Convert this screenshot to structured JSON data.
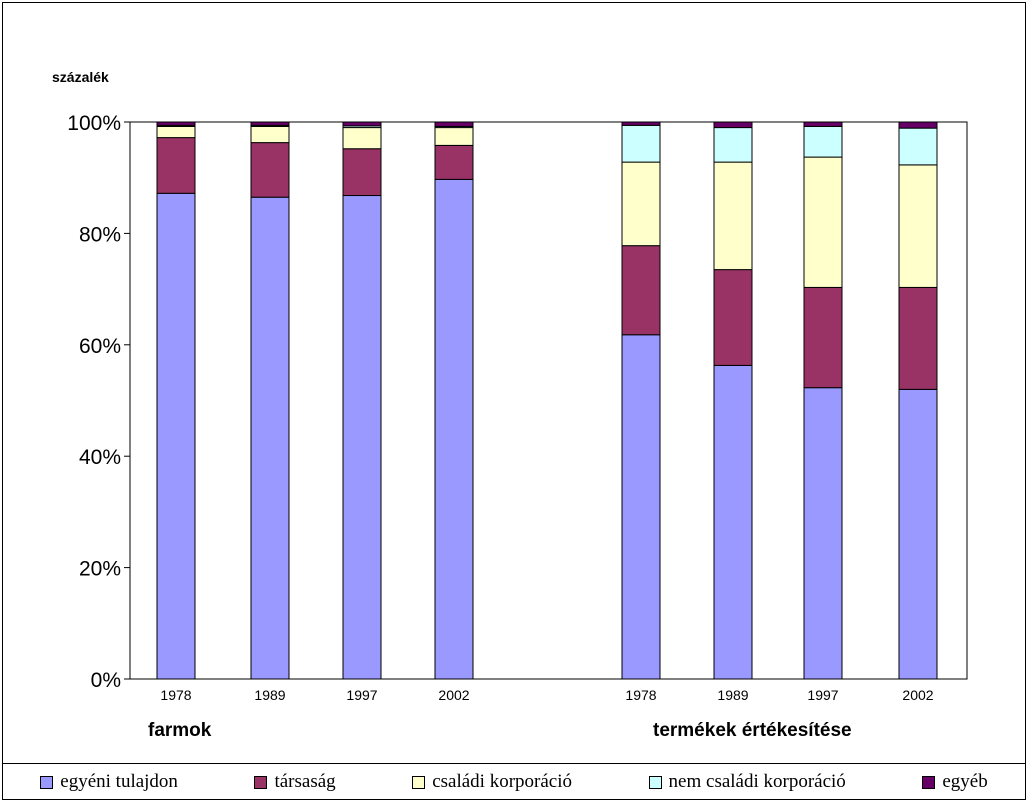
{
  "chart_data": {
    "type": "bar",
    "stacked": true,
    "percent_stacked": true,
    "ylabel": "százalék",
    "ylim": [
      0,
      100
    ],
    "yticks": [
      "0%",
      "20%",
      "40%",
      "60%",
      "80%",
      "100%"
    ],
    "grid": false,
    "legend_position": "bottom",
    "groups": [
      {
        "label": "farmok",
        "categories": [
          "1978",
          "1989",
          "1997",
          "2002"
        ],
        "series": [
          {
            "name": "egyéni tulajdon",
            "color": "#9999FF",
            "values": [
              87.2,
              86.5,
              86.8,
              89.7
            ]
          },
          {
            "name": "társaság",
            "color": "#993366",
            "values": [
              10.0,
              9.8,
              8.4,
              6.1
            ]
          },
          {
            "name": "családi korporáció",
            "color": "#FFFFCC",
            "values": [
              2.0,
              2.9,
              3.8,
              3.2
            ]
          },
          {
            "name": "nem családi korporáció",
            "color": "#CCFFFF",
            "values": [
              0.2,
              0.2,
              0.3,
              0.2
            ]
          },
          {
            "name": "egyéb",
            "color": "#660066",
            "values": [
              0.6,
              0.6,
              0.7,
              0.8
            ]
          }
        ]
      },
      {
        "label": "termékek értékesítése",
        "categories": [
          "1978",
          "1989",
          "1997",
          "2002"
        ],
        "series": [
          {
            "name": "egyéni tulajdon",
            "color": "#9999FF",
            "values": [
              61.8,
              56.3,
              52.3,
              52.0
            ]
          },
          {
            "name": "társaság",
            "color": "#993366",
            "values": [
              16.0,
              17.2,
              18.0,
              18.3
            ]
          },
          {
            "name": "családi korporáció",
            "color": "#FFFFCC",
            "values": [
              15.0,
              19.3,
              23.4,
              22.0
            ]
          },
          {
            "name": "nem családi korporáció",
            "color": "#CCFFFF",
            "values": [
              6.6,
              6.2,
              5.5,
              6.6
            ]
          },
          {
            "name": "egyéb",
            "color": "#660066",
            "values": [
              0.6,
              1.0,
              0.8,
              1.1
            ]
          }
        ]
      }
    ]
  },
  "legend": [
    {
      "label": "egyéni tulajdon",
      "color": "#9999FF"
    },
    {
      "label": "társaság",
      "color": "#993366"
    },
    {
      "label": "családi korporáció",
      "color": "#FFFFCC"
    },
    {
      "label": "nem családi korporáció",
      "color": "#CCFFFF"
    },
    {
      "label": "egyéb",
      "color": "#660066"
    }
  ]
}
